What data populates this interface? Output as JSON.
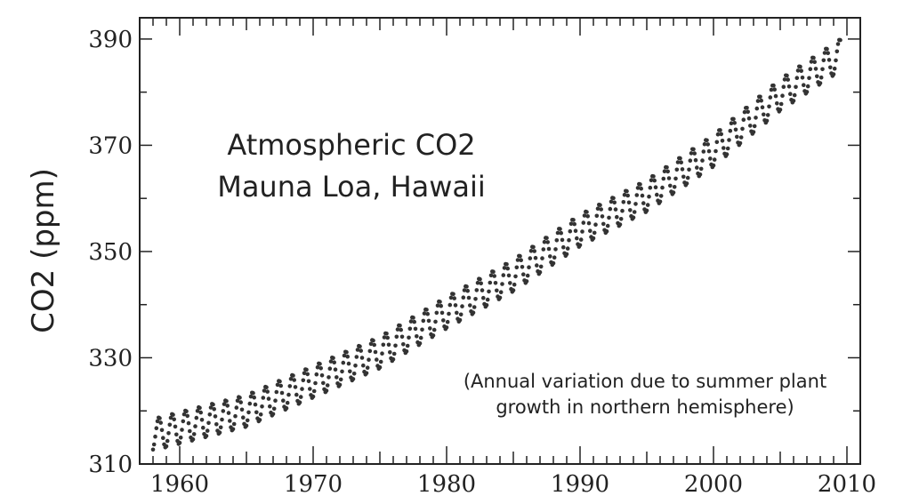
{
  "chart_data": {
    "type": "scatter",
    "title": [
      "Atmospheric CO2",
      "Mauna Loa, Hawaii"
    ],
    "ylabel": "CO2 (ppm)",
    "xlabel": "",
    "annotation": [
      "(Annual variation due to summer plant",
      "growth in northern hemisphere)"
    ],
    "xlim": [
      1957,
      2011
    ],
    "ylim": [
      310,
      394
    ],
    "xticks": [
      "1960",
      "1970",
      "1980",
      "1990",
      "2000",
      "2010"
    ],
    "yticks": [
      "310",
      "330",
      "350",
      "370",
      "390"
    ],
    "grid": false,
    "series": [
      {
        "x_start": 1958,
        "x_end": 2009.5,
        "points_per_year": 12,
        "anchors": [
          [
            1958,
            315.5
          ],
          [
            1960,
            316.8
          ],
          [
            1965,
            320.0
          ],
          [
            1970,
            325.5
          ],
          [
            1975,
            331.0
          ],
          [
            1980,
            338.5
          ],
          [
            1985,
            345.5
          ],
          [
            1990,
            354.0
          ],
          [
            1995,
            360.5
          ],
          [
            2000,
            369.0
          ],
          [
            2005,
            379.5
          ],
          [
            2009.5,
            387.0
          ]
        ],
        "seasonal_amplitude": 3.0
      }
    ]
  }
}
